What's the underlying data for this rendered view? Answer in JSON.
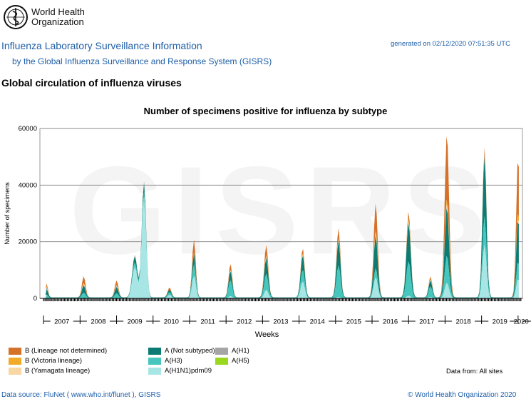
{
  "header": {
    "org_line1": "World Health",
    "org_line2": "Organization",
    "title": "Influenza Laboratory Surveillance Information",
    "subtitle": "by the Global Influenza Surveillance and Response System (GISRS)",
    "generated": "generated on 02/12/2020 07:51:35 UTC",
    "section": "Global circulation of influenza viruses"
  },
  "footer": {
    "source": "Data source: FluNet ( www.who.int/flunet ), GISRS",
    "copyright": "© World Health Organization 2020",
    "data_from": "Data from: All sites"
  },
  "watermark": "GISRS",
  "chart_data": {
    "type": "area",
    "stacked": true,
    "title": "Number of specimens positive for influenza by subtype",
    "xlabel": "Weeks",
    "ylabel": "Number of specimens",
    "ylim": [
      0,
      60000
    ],
    "yticks": [
      0,
      20000,
      40000,
      60000
    ],
    "grid": true,
    "legend_position": "bottom",
    "years": [
      "2007",
      "2008",
      "2009",
      "2010",
      "2011",
      "2012",
      "2013",
      "2014",
      "2015",
      "2016",
      "2017",
      "2018",
      "2019",
      "2020"
    ],
    "x_start": 2006.9,
    "x_end": 2020.12,
    "series": [
      {
        "name": "A(H1N1)pdm09",
        "color": "#a8e6e6"
      },
      {
        "name": "A(H3)",
        "color": "#46c6bc"
      },
      {
        "name": "A (Not subtyped)",
        "color": "#0b7b73"
      },
      {
        "name": "A(H1)",
        "color": "#a5a5a5"
      },
      {
        "name": "A(H5)",
        "color": "#9ad81f"
      },
      {
        "name": "B (Yamagata lineage)",
        "color": "#f8d7a3"
      },
      {
        "name": "B (Victoria lineage)",
        "color": "#f2ab28"
      },
      {
        "name": "B (Lineage not determined)",
        "color": "#d5722a"
      }
    ],
    "peaks": [
      {
        "t": 2007.08,
        "w": 0.04,
        "values": [
          0,
          1200,
          1800,
          400,
          0,
          200,
          300,
          1000
        ]
      },
      {
        "t": 2008.1,
        "w": 0.05,
        "values": [
          0,
          1800,
          2400,
          300,
          0,
          300,
          400,
          2300
        ]
      },
      {
        "t": 2009.0,
        "w": 0.05,
        "values": [
          0,
          1600,
          2000,
          300,
          0,
          200,
          300,
          1600
        ]
      },
      {
        "t": 2009.5,
        "w": 0.07,
        "values": [
          11000,
          1500,
          2000,
          300,
          0,
          0,
          0,
          200
        ]
      },
      {
        "t": 2009.75,
        "w": 0.06,
        "values": [
          36000,
          1500,
          3000,
          200,
          0,
          0,
          0,
          300
        ]
      },
      {
        "t": 2010.45,
        "w": 0.05,
        "values": [
          1200,
          800,
          700,
          0,
          0,
          0,
          0,
          800
        ]
      },
      {
        "t": 2011.12,
        "w": 0.05,
        "values": [
          8000,
          4000,
          3500,
          0,
          0,
          200,
          300,
          4500
        ]
      },
      {
        "t": 2012.12,
        "w": 0.05,
        "values": [
          800,
          5500,
          3000,
          0,
          0,
          300,
          300,
          2000
        ]
      },
      {
        "t": 2013.1,
        "w": 0.055,
        "values": [
          3000,
          5500,
          5500,
          0,
          0,
          500,
          500,
          3500
        ]
      },
      {
        "t": 2014.1,
        "w": 0.055,
        "values": [
          6000,
          4000,
          5000,
          0,
          0,
          500,
          400,
          1600
        ]
      },
      {
        "t": 2015.08,
        "w": 0.055,
        "values": [
          500,
          11000,
          8500,
          0,
          0,
          500,
          500,
          3500
        ]
      },
      {
        "t": 2016.1,
        "w": 0.055,
        "values": [
          7500,
          3000,
          11500,
          0,
          0,
          1000,
          900,
          9500
        ]
      },
      {
        "t": 2017.0,
        "w": 0.06,
        "values": [
          900,
          12000,
          13500,
          0,
          0,
          900,
          800,
          2300
        ]
      },
      {
        "t": 2017.6,
        "w": 0.05,
        "values": [
          500,
          3500,
          2000,
          0,
          0,
          300,
          300,
          800
        ]
      },
      {
        "t": 2018.05,
        "w": 0.06,
        "values": [
          5500,
          9500,
          17000,
          0,
          0,
          1500,
          1500,
          23000
        ]
      },
      {
        "t": 2019.08,
        "w": 0.055,
        "values": [
          19000,
          10000,
          21000,
          0,
          0,
          200,
          300,
          2500
        ]
      },
      {
        "t": 2020.0,
        "w": 0.05,
        "values": [
          7000,
          6000,
          15000,
          0,
          0,
          1000,
          2000,
          19000
        ]
      }
    ]
  }
}
